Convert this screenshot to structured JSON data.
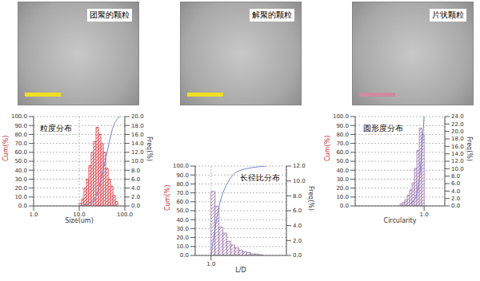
{
  "images": [
    {
      "label": "团聚的颗粒",
      "scale_color": "#f0e020"
    },
    {
      "label": "解聚的颗粒",
      "scale_color": "#f0e020"
    },
    {
      "label": "片状颗粒",
      "scale_color": "#d08aa0"
    }
  ],
  "chart_data": [
    {
      "type": "histogram",
      "title": "粒度分布",
      "x_label": "Size(um)",
      "y_label": "Cum(%)",
      "y2_label": "Freq(%)",
      "log": "x",
      "grid": true,
      "color": "#d9323a",
      "xlim": [
        1,
        100
      ],
      "xticks": [
        {
          "value": 1,
          "label": "1.0"
        },
        {
          "value": 10,
          "label": "10.0"
        },
        {
          "value": 100,
          "label": "100.0"
        }
      ],
      "ylim": [
        0,
        100
      ],
      "yticks": [
        {
          "value": 0,
          "label": "0.0"
        },
        {
          "value": 10,
          "label": "10.0"
        },
        {
          "value": 20,
          "label": "20.0"
        },
        {
          "value": 30,
          "label": "30.0"
        },
        {
          "value": 40,
          "label": "40.0"
        },
        {
          "value": 50,
          "label": "50.0"
        },
        {
          "value": 60,
          "label": "60.0"
        },
        {
          "value": 70,
          "label": "70.0"
        },
        {
          "value": 80,
          "label": "80.0"
        },
        {
          "value": 90,
          "label": "90.0"
        },
        {
          "value": 100,
          "label": "100.0"
        }
      ],
      "y2lim": [
        0,
        20
      ],
      "y2ticks": [
        {
          "value": 0,
          "label": "0.0"
        },
        {
          "value": 2,
          "label": "2.0"
        },
        {
          "value": 4,
          "label": "4.0"
        },
        {
          "value": 6,
          "label": "6.0"
        },
        {
          "value": 8,
          "label": "8.0"
        },
        {
          "value": 10,
          "label": "10.0"
        },
        {
          "value": 12,
          "label": "12.0"
        },
        {
          "value": 14,
          "label": "14.0"
        },
        {
          "value": 16,
          "label": "16.0"
        },
        {
          "value": 18,
          "label": "18.0"
        },
        {
          "value": 20,
          "label": "20.0"
        }
      ],
      "bins": [
        10,
        11.3,
        12.7,
        14.4,
        16.2,
        18.3,
        20.7,
        23.4,
        26.5,
        29.9,
        33.7,
        38.1,
        43.1,
        48.6,
        54.9,
        62,
        70
      ],
      "counts": [
        0.6,
        1.6,
        4,
        6,
        9,
        12,
        14.4,
        17.6,
        16,
        14,
        12,
        8.4,
        6,
        4.4,
        2.4,
        1
      ],
      "cumulative": {
        "color": "#6f86d6",
        "x": [
          10,
          20,
          25,
          30,
          35,
          40,
          45,
          50,
          55,
          62,
          70,
          80
        ],
        "values": [
          0,
          5,
          15,
          30,
          45,
          58,
          70,
          80,
          88,
          94,
          98,
          100
        ]
      }
    },
    {
      "type": "histogram",
      "title": "圆形度分布",
      "x_label": "Circularity",
      "y_label": "Cum(%)",
      "y2_label": "Freq(%)",
      "grid": true,
      "color": "#9a6fa8",
      "xlim": [
        0,
        1.3
      ],
      "xticks": [
        {
          "value": 1,
          "label": "1.0"
        }
      ],
      "ylim": [
        0,
        100
      ],
      "yticks": [
        {
          "value": 0,
          "label": "0.0"
        },
        {
          "value": 10,
          "label": "10.0"
        },
        {
          "value": 20,
          "label": "20.0"
        },
        {
          "value": 30,
          "label": "30.0"
        },
        {
          "value": 40,
          "label": "40.0"
        },
        {
          "value": 50,
          "label": "50.0"
        },
        {
          "value": 60,
          "label": "60.0"
        },
        {
          "value": 70,
          "label": "70.0"
        },
        {
          "value": 80,
          "label": "80.0"
        },
        {
          "value": 90,
          "label": "90.0"
        },
        {
          "value": 100,
          "label": "100.0"
        }
      ],
      "y2lim": [
        0,
        24
      ],
      "y2ticks": [
        {
          "value": 0,
          "label": "0.0"
        },
        {
          "value": 2,
          "label": "2.0"
        },
        {
          "value": 4,
          "label": "4.0"
        },
        {
          "value": 6,
          "label": "6.0"
        },
        {
          "value": 8,
          "label": "8.0"
        },
        {
          "value": 10,
          "label": "10.0"
        },
        {
          "value": 12,
          "label": "12.0"
        },
        {
          "value": 14,
          "label": "14.0"
        },
        {
          "value": 16,
          "label": "16.0"
        },
        {
          "value": 18,
          "label": "18.0"
        },
        {
          "value": 20,
          "label": "20.0"
        },
        {
          "value": 22,
          "label": "22.0"
        },
        {
          "value": 24,
          "label": "24.0"
        }
      ],
      "bins": [
        0.65,
        0.685,
        0.72,
        0.755,
        0.79,
        0.825,
        0.86,
        0.895,
        0.93,
        0.965,
        1.0
      ],
      "counts": [
        0.5,
        1.0,
        1.7,
        2.9,
        4.3,
        6.2,
        10.1,
        14.9,
        20.9,
        19.2
      ],
      "cumulative": {
        "color": "#6f86d6",
        "x": [
          0.8,
          0.85,
          0.9,
          0.93,
          0.96,
          0.98,
          1.0
        ],
        "values": [
          2,
          6,
          15,
          30,
          55,
          78,
          100
        ]
      }
    },
    {
      "type": "histogram",
      "title": "长径比分布",
      "x_label": "L/D",
      "y_label": "Cum(%)",
      "y2_label": "Freq(%)",
      "grid": true,
      "color": "#9a6fa8",
      "xlim": [
        0.6,
        2.9
      ],
      "xticks": [
        {
          "value": 1,
          "label": "1.0"
        }
      ],
      "ylim": [
        0,
        100
      ],
      "yticks": [
        {
          "value": 0,
          "label": "0.0"
        },
        {
          "value": 10,
          "label": "10.0"
        },
        {
          "value": 20,
          "label": "20.0"
        },
        {
          "value": 30,
          "label": "30.0"
        },
        {
          "value": 40,
          "label": "40.0"
        },
        {
          "value": 50,
          "label": "50.0"
        },
        {
          "value": 60,
          "label": "60.0"
        },
        {
          "value": 70,
          "label": "70.0"
        },
        {
          "value": 80,
          "label": "80.0"
        },
        {
          "value": 90,
          "label": "90.0"
        },
        {
          "value": 100,
          "label": "100.0"
        }
      ],
      "y2lim": [
        0,
        12
      ],
      "y2ticks": [
        {
          "value": 0,
          "label": "0.0"
        },
        {
          "value": 2,
          "label": "2.0"
        },
        {
          "value": 4,
          "label": "4.0"
        },
        {
          "value": 6,
          "label": "6.0"
        },
        {
          "value": 8,
          "label": "8.0"
        },
        {
          "value": 10,
          "label": "10.0"
        },
        {
          "value": 12,
          "label": "12.0"
        }
      ],
      "bins": [
        1.0,
        1.1,
        1.2,
        1.3,
        1.4,
        1.5,
        1.6,
        1.7,
        1.8,
        1.9,
        2.0,
        2.1,
        2.2,
        2.3
      ],
      "counts": [
        8.6,
        6.6,
        3.8,
        3.0,
        1.9,
        1.4,
        1.0,
        0.7,
        0.5,
        0.4,
        0.2,
        0.2,
        0.1
      ],
      "cumulative": {
        "color": "#6f86d6",
        "x": [
          1.0,
          1.1,
          1.2,
          1.3,
          1.4,
          1.5,
          1.6,
          1.8,
          2.0,
          2.4
        ],
        "values": [
          0,
          30,
          55,
          70,
          80,
          87,
          92,
          96,
          98,
          100
        ]
      }
    }
  ]
}
